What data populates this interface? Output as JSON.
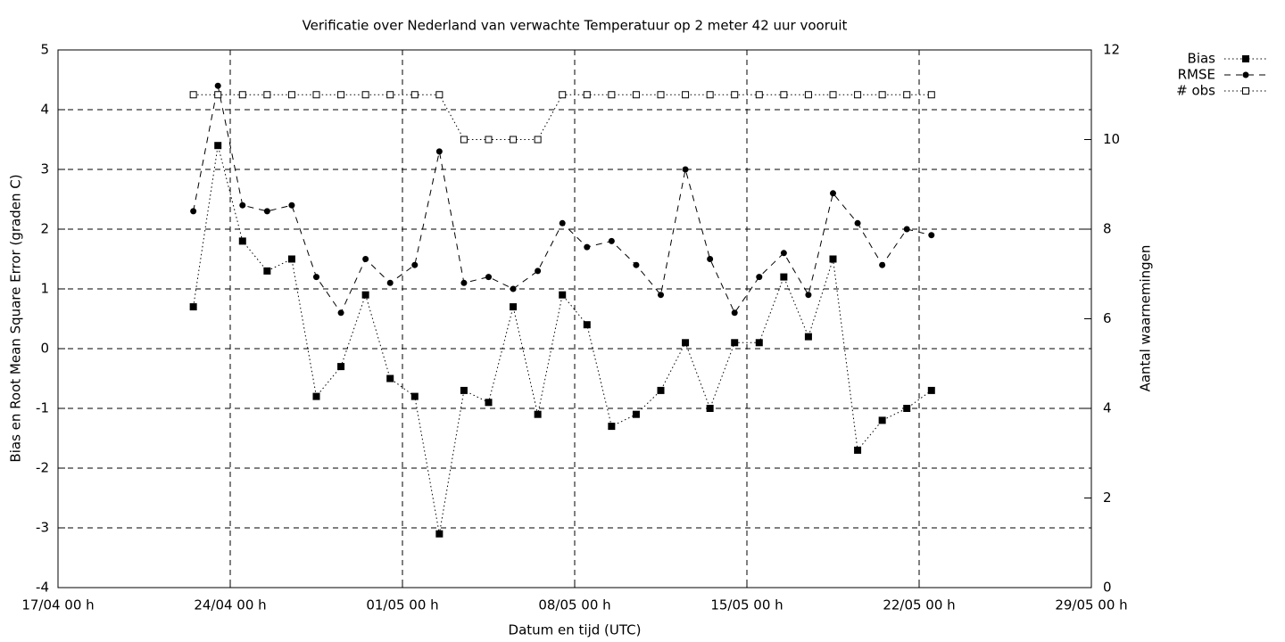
{
  "chart_data": {
    "type": "line",
    "title": "Verificatie over Nederland van verwachte Temperatuur op 2 meter 42 uur vooruit",
    "xlabel": "Datum en tijd (UTC)",
    "ylabel": "Bias en Root Mean Square Error (graden C)",
    "y2label": "Aantal waarnemingen",
    "x": [
      "22/04 12 h",
      "23/04 12 h",
      "24/04 12 h",
      "25/04 12 h",
      "26/04 12 h",
      "27/04 12 h",
      "28/04 12 h",
      "29/04 12 h",
      "30/04 12 h",
      "01/05 12 h",
      "02/05 12 h",
      "03/05 12 h",
      "04/05 12 h",
      "05/05 12 h",
      "06/05 12 h",
      "07/05 12 h",
      "08/05 12 h",
      "09/05 12 h",
      "10/05 12 h",
      "11/05 12 h",
      "12/05 12 h",
      "13/05 12 h",
      "14/05 12 h",
      "15/05 12 h",
      "16/05 12 h",
      "17/05 12 h",
      "18/05 12 h",
      "19/05 12 h",
      "20/05 12 h",
      "21/05 12 h",
      "22/05 12 h"
    ],
    "series": [
      {
        "name": "Bias",
        "color": "#000000",
        "line": "dotted",
        "marker": "square-filled",
        "values": [
          0.7,
          3.4,
          1.8,
          1.3,
          1.5,
          -0.8,
          -0.3,
          0.9,
          -0.5,
          -0.8,
          -3.1,
          -0.7,
          -0.9,
          0.7,
          -1.1,
          0.9,
          0.4,
          -1.3,
          -1.1,
          -0.7,
          0.1,
          -1.0,
          0.1,
          0.1,
          1.2,
          0.2,
          1.5,
          -1.7,
          -1.2,
          -1.0,
          -0.7
        ]
      },
      {
        "name": "RMSE",
        "color": "#000000",
        "line": "dashed",
        "marker": "circle-filled",
        "values": [
          2.3,
          4.4,
          2.4,
          2.3,
          2.4,
          1.2,
          0.6,
          1.5,
          1.1,
          1.4,
          3.3,
          1.1,
          1.2,
          1.0,
          1.3,
          2.1,
          1.7,
          1.8,
          1.4,
          0.9,
          3.0,
          1.5,
          0.6,
          1.2,
          1.6,
          0.9,
          2.6,
          2.1,
          1.4,
          2.0,
          1.9
        ]
      },
      {
        "name": "# obs",
        "color": "#000000",
        "line": "dotted",
        "marker": "square-open",
        "axis": "y2",
        "values": [
          11,
          11,
          11,
          11,
          11,
          11,
          11,
          11,
          11,
          11,
          11,
          10,
          10,
          10,
          10,
          11,
          11,
          11,
          11,
          11,
          11,
          11,
          11,
          11,
          11,
          11,
          11,
          11,
          11,
          11,
          11
        ]
      }
    ],
    "xlim": [
      "17/04 00 h",
      "29/05 00 h"
    ],
    "xticks": [
      "17/04 00 h",
      "24/04 00 h",
      "01/05 00 h",
      "08/05 00 h",
      "15/05 00 h",
      "22/05 00 h",
      "29/05 00 h"
    ],
    "ylim": [
      -4,
      5
    ],
    "yticks": [
      -4,
      -3,
      -2,
      -1,
      0,
      1,
      2,
      3,
      4,
      5
    ],
    "y2lim": [
      0,
      12
    ],
    "y2ticks": [
      0,
      2,
      4,
      6,
      8,
      10,
      12
    ],
    "grid": true,
    "legend": "outside-top-right"
  }
}
